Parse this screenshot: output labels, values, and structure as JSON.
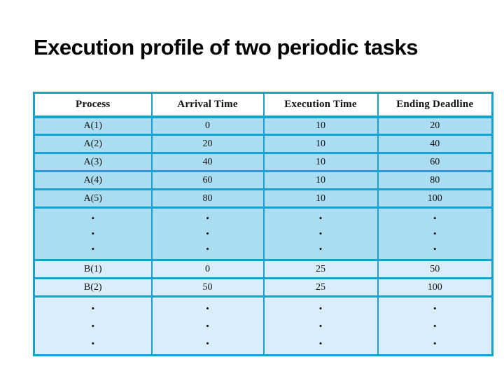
{
  "slide": {
    "title": "Execution profile of two periodic tasks"
  },
  "table": {
    "columns": [
      "Process",
      "Arrival Time",
      "Execution Time",
      "Ending Deadline"
    ],
    "rows": [
      {
        "cells": [
          "A(1)",
          "0",
          "10",
          "20"
        ]
      },
      {
        "cells": [
          "A(2)",
          "20",
          "10",
          "40"
        ]
      },
      {
        "cells": [
          "A(3)",
          "40",
          "10",
          "60"
        ]
      },
      {
        "cells": [
          "A(4)",
          "60",
          "10",
          "80"
        ]
      },
      {
        "cells": [
          "A(5)",
          "80",
          "10",
          "100"
        ]
      },
      {
        "cells": [
          "B(1)",
          "0",
          "25",
          "50"
        ]
      },
      {
        "cells": [
          "B(2)",
          "50",
          "25",
          "100"
        ]
      }
    ],
    "ellipsis_symbol": "•",
    "colors": {
      "border": "#18a2d4",
      "row-a": "#aaddf2",
      "row-b": "#d9eefa",
      "header-bg": "#ffffff",
      "text": "#111111"
    }
  }
}
